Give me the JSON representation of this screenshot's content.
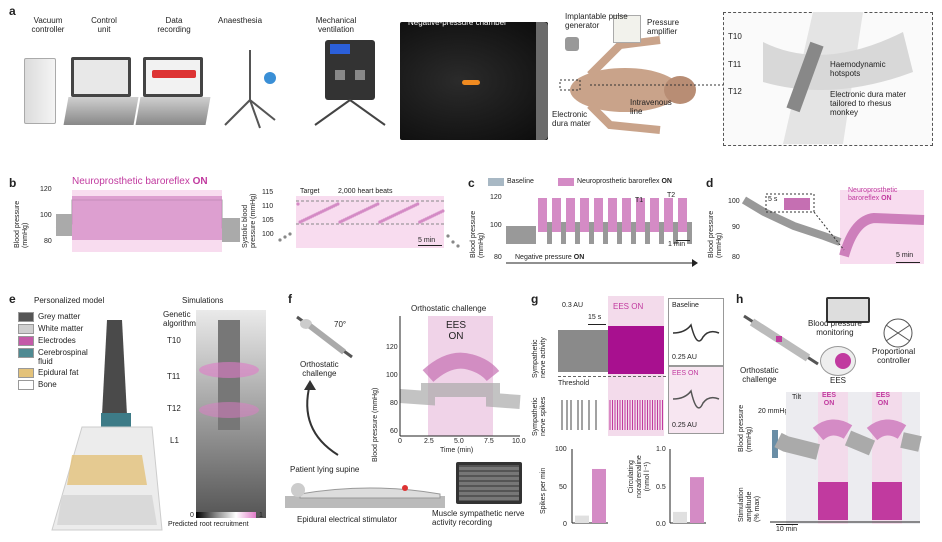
{
  "panels": {
    "a": "a",
    "b": "b",
    "c": "c",
    "d": "d",
    "e": "e",
    "f": "f",
    "g": "g",
    "h": "h"
  },
  "a": {
    "vacuum": "Vacuum\ncontroller",
    "control": "Control\nunit",
    "data": "Data\nrecording",
    "anaesthesia": "Anaesthesia",
    "ventilation": "Mechanical\nventilation",
    "chamber": "Negative-pressure chamber",
    "ipg": "Implantable pulse\ngenerator",
    "amp": "Pressure\namplifier",
    "dura": "Electronic\ndura mater",
    "iv": "Intravenous\nline",
    "t10": "T10",
    "t11": "T11",
    "t12": "T12",
    "hotspots": "Haemodynamic\nhotspots",
    "edm": "Electronic dura mater\ntailored to rhesus\nmonkey"
  },
  "b": {
    "title": "Neuroprosthetic baroreflex",
    "on": "ON",
    "ylabel": "Blood pressure\n(mmHg)",
    "yticks": [
      "120",
      "100",
      "80"
    ],
    "ylabel2": "Systolic blood\npressure (mmHg)",
    "yticks2": [
      "115",
      "110",
      "105",
      "100"
    ],
    "target": "Target",
    "beats": "2,000 heart beats",
    "scale": "5 min"
  },
  "c": {
    "baseline": "Baseline",
    "nb": "Neuroprosthetic baroreflex",
    "on": "ON",
    "ylabel": "Blood pressure\n(mmHg)",
    "yticks": [
      "120",
      "100",
      "80"
    ],
    "t1": "T1",
    "t2": "T2",
    "scale": "1 min",
    "neg": "Negative pressure",
    "neg_on": "ON"
  },
  "d": {
    "ylabel": "Blood pressure\n(mmHg)",
    "yticks": [
      "100",
      "90",
      "80"
    ],
    "inset": "5 s",
    "label": "Neuroprosthetic\nbaroreflex",
    "on": "ON",
    "scale": "5 min"
  },
  "e": {
    "model": "Personalized model",
    "sims": "Simulations",
    "ga": "Genetic\nalgorithm",
    "legend": [
      "Grey matter",
      "White matter",
      "Electrodes",
      "Cerebrospinal\nfluid",
      "Epidural fat",
      "Bone"
    ],
    "legend_colors": [
      "#555555",
      "#cfcfcf",
      "#c45aa8",
      "#4f8a92",
      "#e3c27a",
      "#ffffff"
    ],
    "levels": [
      "T10",
      "T11",
      "T12",
      "L1"
    ],
    "cbar_min": "0",
    "cbar_max": "1",
    "cbar": "Predicted root recruitment"
  },
  "f": {
    "angle": "70°",
    "ortho": "Orthostatic\nchallenge",
    "title": "Orthostatic challenge",
    "ees": "EES\nON",
    "ylabel": "Blood pressure (mmHg)",
    "yticks": [
      "120",
      "100",
      "80",
      "60"
    ],
    "xticks": [
      "0",
      "2.5",
      "5.0",
      "7.5",
      "10.0"
    ],
    "xlabel": "Time (min)",
    "supine": "Patient lying supine",
    "stim": "Epidural electrical stimulator",
    "msna": "Muscle sympathetic nerve\nactivity recording"
  },
  "g": {
    "au": "0.3 AU",
    "s": "15 s",
    "ees": "EES ON",
    "baseline": "Baseline",
    "eeson": "EES ON",
    "au2": "0.25 AU",
    "au3": "0.25 AU",
    "ylabel1": "Sympathetic\nnerve activity",
    "threshold": "Threshold",
    "ylabel2": "Sympathetic\nnerve spikes",
    "spikes_label": "Spikes per min",
    "spikes_ticks": [
      "100",
      "50",
      "0"
    ],
    "nor_label": "Circulating\nnoradrenaline\n(nmol l⁻¹)",
    "nor_ticks": [
      "1.0",
      "0.5",
      "0.0"
    ]
  },
  "h": {
    "bpm": "Blood pressure\nmonitoring",
    "pc": "Proportional\ncontroller",
    "ortho": "Orthostatic\nchallenge",
    "ees": "EES",
    "ylabel": "Blood pressure\n(mmHg)",
    "scale": "20 mmHg",
    "tilt": "Tilt",
    "ees1": "EES\nON",
    "ees2": "EES\nON",
    "ylabel2": "Stimulation\namplitude\n(% max)",
    "xscale": "10 min"
  },
  "chart_data": [
    {
      "type": "bar",
      "panel": "g-spikes",
      "categories": [
        "Baseline",
        "EES ON"
      ],
      "values": [
        10,
        73
      ],
      "ylabel": "Spikes per min",
      "ylim": [
        0,
        100
      ]
    },
    {
      "type": "bar",
      "panel": "g-noradrenaline",
      "categories": [
        "Baseline",
        "EES ON"
      ],
      "values": [
        0.15,
        0.62
      ],
      "ylabel": "Circulating noradrenaline (nmol l⁻¹)",
      "ylim": [
        0,
        1.0
      ]
    }
  ]
}
